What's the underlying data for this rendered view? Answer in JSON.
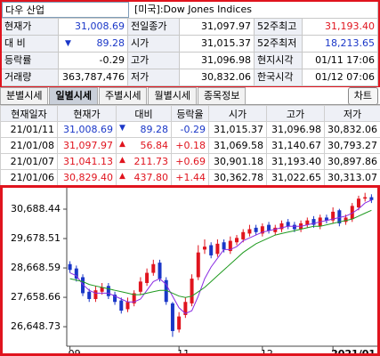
{
  "symbol": {
    "name": "다우 산업",
    "market": "[미국]:Dow Jones Indices"
  },
  "quote": [
    [
      {
        "label": "현재가",
        "value": "31,008.69",
        "color": "#1a37c8"
      },
      {
        "label": "전일종가",
        "value": "31,097.97"
      },
      {
        "label": "52주최고",
        "value": "31,193.40",
        "color": "#e0141e"
      }
    ],
    [
      {
        "label": "대 비",
        "arrow": "▼",
        "value": "89.28",
        "color": "#1a37c8"
      },
      {
        "label": "시가",
        "value": "31,015.37"
      },
      {
        "label": "52주최저",
        "value": "18,213.65",
        "color": "#1a37c8"
      }
    ],
    [
      {
        "label": "등락률",
        "value": "-0.29"
      },
      {
        "label": "고가",
        "value": "31,096.98"
      },
      {
        "label": "현지시각",
        "value": "01/11 17:06"
      }
    ],
    [
      {
        "label": "거래량",
        "value": "363,787,476"
      },
      {
        "label": "저가",
        "value": "30,832.06"
      },
      {
        "label": "한국시각",
        "value": "01/12 07:06"
      }
    ]
  ],
  "tabs": {
    "items": [
      "분별시세",
      "일별시세",
      "주별시세",
      "월별시세",
      "종목정보"
    ],
    "active": 1,
    "button": "차트"
  },
  "daily": {
    "headers": [
      "현재일자",
      "현재가",
      "대비",
      "등락율",
      "시가",
      "고가",
      "저가"
    ],
    "rows": [
      {
        "date": "21/01/11",
        "close": "31,008.69",
        "arrow": "▼",
        "change": "89.28",
        "rate": "-0.29",
        "open": "31,015.37",
        "high": "31,096.98",
        "low": "30,832.06",
        "color": "#1a37c8"
      },
      {
        "date": "21/01/08",
        "close": "31,097.97",
        "arrow": "▲",
        "change": "56.84",
        "rate": "+0.18",
        "open": "31,069.58",
        "high": "31,140.67",
        "low": "30,793.27",
        "color": "#e0141e"
      },
      {
        "date": "21/01/07",
        "close": "31,041.13",
        "arrow": "▲",
        "change": "211.73",
        "rate": "+0.69",
        "open": "30,901.18",
        "high": "31,193.40",
        "low": "30,897.86",
        "color": "#e0141e"
      },
      {
        "date": "21/01/06",
        "close": "30,829.40",
        "arrow": "▲",
        "change": "437.80",
        "rate": "+1.44",
        "open": "30,362.78",
        "high": "31,022.65",
        "low": "30,313.07",
        "color": "#e0141e"
      }
    ]
  },
  "chart_data": {
    "type": "candlestick",
    "categories": [
      "09",
      null,
      null,
      null,
      null,
      null,
      null,
      null,
      null,
      null,
      null,
      null,
      null,
      null,
      null,
      null,
      null,
      "11",
      null,
      null,
      null,
      null,
      null,
      null,
      null,
      null,
      null,
      null,
      null,
      null,
      "12",
      null,
      null,
      null,
      null,
      null,
      null,
      null,
      null,
      null,
      null,
      "2021/01",
      null,
      null,
      null,
      null,
      null,
      null
    ],
    "open": [
      28800,
      28650,
      28350,
      27850,
      27600,
      27850,
      28050,
      27750,
      27550,
      27250,
      27450,
      27850,
      28150,
      28500,
      28850,
      28250,
      27450,
      26550,
      27050,
      27450,
      28350,
      29300,
      29450,
      29150,
      29550,
      29250,
      29550,
      29650,
      29850,
      30050,
      29850,
      30150,
      29900,
      30000,
      30250,
      30150,
      30000,
      30150,
      30350,
      30100,
      30400,
      30300,
      30650,
      30250,
      30350,
      30750,
      31050,
      31100
    ],
    "high": [
      28900,
      28750,
      28450,
      27950,
      28050,
      28150,
      28150,
      27850,
      27650,
      27650,
      27900,
      28350,
      28650,
      28950,
      28950,
      28350,
      27500,
      27150,
      27650,
      28450,
      29450,
      29650,
      29550,
      29650,
      29650,
      29750,
      29800,
      30000,
      30150,
      30150,
      30200,
      30250,
      30150,
      30300,
      30350,
      30250,
      30300,
      30400,
      30450,
      30500,
      30500,
      30750,
      30700,
      30500,
      30900,
      31150,
      31250,
      31200
    ],
    "low": [
      28500,
      28200,
      27700,
      27500,
      27500,
      27750,
      27600,
      27400,
      27100,
      27150,
      27350,
      27750,
      28050,
      28400,
      28200,
      27400,
      26300,
      26450,
      26950,
      27350,
      28250,
      29150,
      29000,
      29050,
      29200,
      29150,
      29450,
      29550,
      29750,
      29800,
      29750,
      29850,
      29800,
      29900,
      30000,
      29900,
      29900,
      30050,
      30050,
      30000,
      30200,
      30200,
      30100,
      30150,
      30250,
      30650,
      30950,
      30900
    ],
    "close": [
      28600,
      28300,
      27800,
      27600,
      27900,
      28000,
      27700,
      27500,
      27200,
      27500,
      27800,
      28200,
      28500,
      28800,
      28300,
      27500,
      26500,
      27000,
      27500,
      28300,
      29200,
      29400,
      29100,
      29500,
      29300,
      29600,
      29700,
      29900,
      30000,
      29900,
      30100,
      29950,
      30050,
      30200,
      30100,
      30000,
      30200,
      30300,
      30150,
      30400,
      30300,
      30600,
      30200,
      30400,
      30800,
      31050,
      31100,
      31000
    ],
    "up_color": "#e0141e",
    "down_color": "#1a37c8",
    "lines": [
      {
        "color": "#8a2be2",
        "values": [
          28500,
          28400,
          28100,
          27900,
          27800,
          27800,
          27800,
          27700,
          27600,
          27500,
          27500,
          27600,
          27900,
          28200,
          28300,
          28100,
          27700,
          27300,
          27100,
          27200,
          27700,
          28300,
          28700,
          29000,
          29300,
          29300,
          29400,
          29600,
          29700,
          29800,
          29900,
          29950,
          30000,
          30050,
          30100,
          30100,
          30100,
          30150,
          30200,
          30250,
          30300,
          30350,
          30400,
          30450,
          30550,
          30700,
          30900,
          31000
        ]
      },
      {
        "color": "#1f9a1f",
        "values": [
          28300,
          28250,
          28200,
          28100,
          28050,
          28000,
          27950,
          27900,
          27850,
          27800,
          27750,
          27750,
          27800,
          27850,
          27900,
          27900,
          27800,
          27700,
          27650,
          27700,
          27850,
          28000,
          28200,
          28400,
          28600,
          28800,
          29000,
          29200,
          29350,
          29500,
          29600,
          29700,
          29800,
          29850,
          29900,
          29950,
          30000,
          30050,
          30100,
          30100,
          30150,
          30200,
          30250,
          30300,
          30350,
          30450,
          30550,
          30650
        ]
      }
    ],
    "ylim": [
      26070,
      31270
    ],
    "yticks": [
      {
        "value": 26648.73,
        "label": "26,648.73"
      },
      {
        "value": 27658.66,
        "label": "27,658.66"
      },
      {
        "value": 28668.59,
        "label": "28,668.59"
      },
      {
        "value": 29678.51,
        "label": "29,678.51"
      },
      {
        "value": 30688.44,
        "label": "30,688.44"
      }
    ]
  }
}
